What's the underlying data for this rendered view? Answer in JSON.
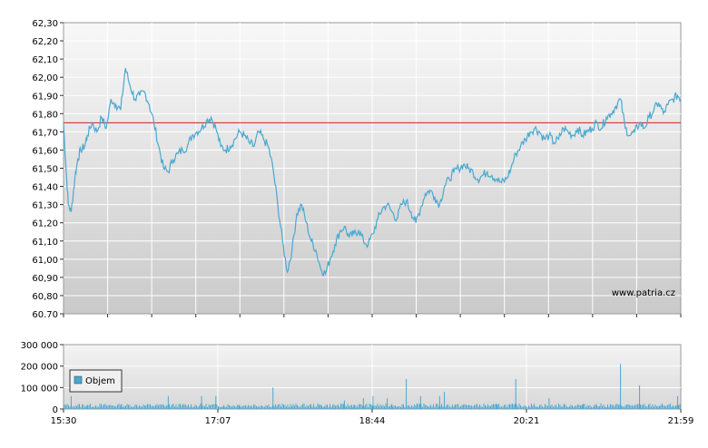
{
  "watermark": "www.patria.cz",
  "chart_data": [
    {
      "type": "line",
      "title": "",
      "xlabel": "",
      "ylabel": "",
      "ylim": [
        60.7,
        62.3
      ],
      "y_ticks": [
        "62,30",
        "62,20",
        "62,10",
        "62,00",
        "61,90",
        "61,80",
        "61,70",
        "61,60",
        "61,50",
        "61,40",
        "61,30",
        "61,20",
        "61,10",
        "61,00",
        "60,90",
        "60,80",
        "60.70"
      ],
      "reference_line": 61.75,
      "colors": {
        "line": "#4aa8d0",
        "reference": "#cc2222",
        "grid": "#ffffff"
      },
      "grid": true,
      "x_range_hours": [
        15.5,
        21.983
      ],
      "series": [
        {
          "x": [
            15.5,
            15.52,
            15.55,
            15.58,
            15.62,
            15.65,
            15.68,
            15.72,
            15.75,
            15.8,
            15.85,
            15.9,
            15.95,
            16.0,
            16.05,
            16.1,
            16.15,
            16.2,
            16.25,
            16.3,
            16.35,
            16.4,
            16.45,
            16.5,
            16.55,
            16.6,
            16.65,
            16.7,
            16.75,
            16.8,
            16.85,
            16.9,
            16.95,
            17.0,
            17.05,
            17.1,
            17.15,
            17.2,
            17.25,
            17.3,
            17.35,
            17.4,
            17.45,
            17.5,
            17.55,
            17.6,
            17.65,
            17.7,
            17.75,
            17.8,
            17.85,
            17.9,
            17.95,
            18.0,
            18.05,
            18.1,
            18.15,
            18.2,
            18.25,
            18.3,
            18.35,
            18.4,
            18.45,
            18.5,
            18.55,
            18.6,
            18.65,
            18.7,
            18.75,
            18.8,
            18.85,
            18.9,
            18.95,
            19.0,
            19.05,
            19.1,
            19.15,
            19.2,
            19.25,
            19.3,
            19.35,
            19.4,
            19.45,
            19.5,
            19.55,
            19.6,
            19.65,
            19.7,
            19.75,
            19.8,
            19.85,
            19.9,
            19.95,
            20.0,
            20.05,
            20.1,
            20.15,
            20.2,
            20.25,
            20.3,
            20.35,
            20.4,
            20.45,
            20.5,
            20.55,
            20.6,
            20.65,
            20.7,
            20.75,
            20.8,
            20.85,
            20.9,
            20.95,
            21.0,
            21.05,
            21.1,
            21.15,
            21.2,
            21.25,
            21.3,
            21.35,
            21.4,
            21.45,
            21.5,
            21.55,
            21.6,
            21.65,
            21.7,
            21.75,
            21.8,
            21.85,
            21.9,
            21.95,
            21.983
          ],
          "y": [
            61.75,
            61.55,
            61.3,
            61.26,
            61.45,
            61.55,
            61.6,
            61.62,
            61.68,
            61.75,
            61.7,
            61.78,
            61.72,
            61.88,
            61.85,
            61.82,
            62.05,
            61.95,
            61.88,
            61.9,
            61.92,
            61.85,
            61.75,
            61.62,
            61.5,
            61.48,
            61.55,
            61.58,
            61.6,
            61.62,
            61.68,
            61.7,
            61.72,
            61.76,
            61.78,
            61.72,
            61.62,
            61.6,
            61.62,
            61.66,
            61.7,
            61.68,
            61.64,
            61.62,
            61.7,
            61.66,
            61.62,
            61.5,
            61.3,
            61.1,
            60.93,
            61.05,
            61.25,
            61.3,
            61.2,
            61.1,
            61.05,
            60.95,
            60.92,
            61.0,
            61.08,
            61.15,
            61.18,
            61.12,
            61.14,
            61.16,
            61.1,
            61.08,
            61.14,
            61.22,
            61.28,
            61.3,
            61.26,
            61.22,
            61.3,
            61.32,
            61.26,
            61.2,
            61.28,
            61.36,
            61.38,
            61.34,
            61.3,
            61.4,
            61.44,
            61.48,
            61.5,
            61.52,
            61.5,
            61.48,
            61.44,
            61.46,
            61.48,
            61.46,
            61.44,
            61.42,
            61.44,
            61.5,
            61.58,
            61.62,
            61.66,
            61.7,
            61.72,
            61.7,
            61.66,
            61.68,
            61.64,
            61.66,
            61.72,
            61.7,
            61.68,
            61.72,
            61.68,
            61.7,
            61.72,
            61.75,
            61.72,
            61.78,
            61.8,
            61.84,
            61.88,
            61.72,
            61.68,
            61.7,
            61.75,
            61.72,
            61.78,
            61.82,
            61.86,
            61.8,
            61.85,
            61.88,
            61.9,
            61.88
          ],
          "name": ""
        }
      ]
    },
    {
      "type": "bar",
      "title": "",
      "xlabel": "",
      "ylabel": "",
      "ylim": [
        0,
        300000
      ],
      "y_ticks": [
        "300 000",
        "200 000",
        "100 000",
        "0"
      ],
      "x_ticks": [
        "15:30",
        "17:07",
        "18:44",
        "20:21",
        "21:59"
      ],
      "legend": {
        "label": "Objem",
        "position": "top-left"
      },
      "colors": {
        "bar": "#4aa8d0"
      },
      "grid": true,
      "x_range_hours": [
        15.5,
        21.983
      ],
      "series": [
        {
          "x": [
            15.58,
            15.75,
            16.1,
            16.6,
            16.95,
            17.1,
            17.35,
            17.7,
            18.2,
            18.45,
            18.55,
            18.65,
            18.75,
            18.9,
            18.95,
            19.1,
            19.25,
            19.45,
            19.5,
            19.7,
            20.05,
            20.25,
            20.6,
            20.95,
            21.1,
            21.35,
            21.55,
            21.95
          ],
          "y": [
            60000,
            20000,
            20000,
            60000,
            60000,
            60000,
            20000,
            100000,
            20000,
            40000,
            20000,
            50000,
            60000,
            50000,
            20000,
            140000,
            60000,
            60000,
            80000,
            20000,
            20000,
            140000,
            50000,
            20000,
            20000,
            210000,
            110000,
            60000
          ],
          "name": "Objem"
        }
      ]
    }
  ]
}
